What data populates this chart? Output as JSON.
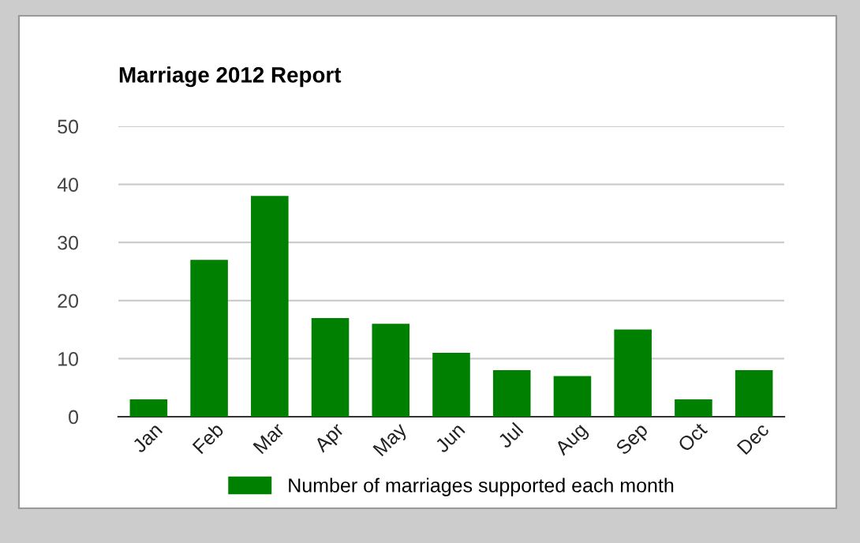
{
  "chart_data": {
    "type": "bar",
    "title": "Marriage 2012 Report",
    "categories": [
      "Jan",
      "Feb",
      "Mar",
      "Apr",
      "May",
      "Jun",
      "Jul",
      "Aug",
      "Sep",
      "Oct",
      "Dec"
    ],
    "series": [
      {
        "name": "Number of marriages supported each month",
        "color": "#008000",
        "values": [
          3,
          27,
          38,
          17,
          16,
          11,
          8,
          7,
          15,
          3,
          8
        ]
      }
    ],
    "ylim": [
      0,
      50
    ],
    "yticks": [
      0,
      10,
      20,
      30,
      40,
      50
    ],
    "grid": "y",
    "legend": "bottom"
  }
}
